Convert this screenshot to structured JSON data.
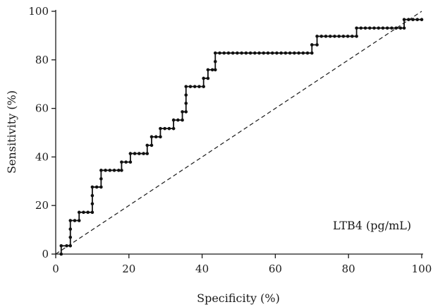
{
  "chart_data": {
    "type": "line",
    "xlabel": "Specificity (%)",
    "ylabel": "Sensitivity (%)",
    "xlim": [
      0,
      100
    ],
    "ylim": [
      0,
      100
    ],
    "x_ticks": [
      "0",
      "20",
      "40",
      "60",
      "80",
      "100"
    ],
    "y_ticks": [
      "0",
      "20",
      "40",
      "60",
      "80",
      "100"
    ],
    "annotation": "LTB4 (pg/mL)",
    "grid": false,
    "reference_line": {
      "x": [
        0,
        100
      ],
      "y": [
        0,
        100
      ],
      "style": "dashed"
    },
    "series": [
      {
        "marker": "dot",
        "step": true,
        "points": [
          [
            1.5,
            0
          ],
          [
            1.5,
            3.4
          ],
          [
            3.0,
            3.4
          ],
          [
            4.0,
            3.4
          ],
          [
            4.0,
            6.9
          ],
          [
            4.0,
            10.3
          ],
          [
            4.0,
            13.8
          ],
          [
            5.2,
            13.8
          ],
          [
            6.4,
            13.8
          ],
          [
            6.4,
            17.2
          ],
          [
            7.6,
            17.2
          ],
          [
            8.8,
            17.2
          ],
          [
            10.0,
            17.2
          ],
          [
            10.0,
            20.7
          ],
          [
            10.0,
            24.1
          ],
          [
            10.0,
            27.6
          ],
          [
            11.2,
            27.6
          ],
          [
            12.4,
            27.6
          ],
          [
            12.4,
            31.0
          ],
          [
            12.4,
            34.5
          ],
          [
            13.6,
            34.5
          ],
          [
            14.8,
            34.5
          ],
          [
            16.0,
            34.5
          ],
          [
            17.2,
            34.5
          ],
          [
            18.0,
            34.5
          ],
          [
            18.0,
            37.9
          ],
          [
            19.2,
            37.9
          ],
          [
            20.4,
            37.9
          ],
          [
            20.4,
            41.4
          ],
          [
            21.6,
            41.4
          ],
          [
            22.8,
            41.4
          ],
          [
            24.0,
            41.4
          ],
          [
            25.0,
            41.4
          ],
          [
            25.0,
            44.8
          ],
          [
            26.2,
            44.8
          ],
          [
            26.2,
            48.3
          ],
          [
            27.4,
            48.3
          ],
          [
            28.6,
            48.3
          ],
          [
            28.6,
            51.7
          ],
          [
            29.8,
            51.7
          ],
          [
            31.0,
            51.7
          ],
          [
            32.2,
            51.7
          ],
          [
            32.2,
            55.2
          ],
          [
            33.4,
            55.2
          ],
          [
            34.6,
            55.2
          ],
          [
            34.6,
            58.6
          ],
          [
            35.6,
            58.6
          ],
          [
            35.6,
            62.1
          ],
          [
            35.6,
            65.5
          ],
          [
            35.6,
            69.0
          ],
          [
            36.8,
            69.0
          ],
          [
            38.0,
            69.0
          ],
          [
            39.2,
            69.0
          ],
          [
            40.4,
            69.0
          ],
          [
            40.4,
            72.4
          ],
          [
            41.6,
            72.4
          ],
          [
            41.6,
            75.9
          ],
          [
            42.8,
            75.9
          ],
          [
            43.6,
            75.9
          ],
          [
            43.6,
            79.3
          ],
          [
            43.6,
            82.8
          ],
          [
            44.8,
            82.8
          ],
          [
            46.0,
            82.8
          ],
          [
            47.2,
            82.8
          ],
          [
            48.4,
            82.8
          ],
          [
            49.6,
            82.8
          ],
          [
            50.8,
            82.8
          ],
          [
            52.0,
            82.8
          ],
          [
            53.2,
            82.8
          ],
          [
            54.4,
            82.8
          ],
          [
            55.6,
            82.8
          ],
          [
            56.8,
            82.8
          ],
          [
            58.0,
            82.8
          ],
          [
            59.2,
            82.8
          ],
          [
            60.4,
            82.8
          ],
          [
            61.6,
            82.8
          ],
          [
            62.8,
            82.8
          ],
          [
            64.0,
            82.8
          ],
          [
            65.2,
            82.8
          ],
          [
            66.4,
            82.8
          ],
          [
            67.6,
            82.8
          ],
          [
            68.8,
            82.8
          ],
          [
            70.0,
            82.8
          ],
          [
            70.0,
            86.2
          ],
          [
            71.4,
            86.2
          ],
          [
            71.4,
            89.7
          ],
          [
            72.6,
            89.7
          ],
          [
            73.8,
            89.7
          ],
          [
            75.0,
            89.7
          ],
          [
            76.2,
            89.7
          ],
          [
            77.4,
            89.7
          ],
          [
            78.6,
            89.7
          ],
          [
            79.8,
            89.7
          ],
          [
            81.0,
            89.7
          ],
          [
            82.2,
            89.7
          ],
          [
            82.2,
            93.1
          ],
          [
            83.4,
            93.1
          ],
          [
            84.6,
            93.1
          ],
          [
            85.8,
            93.1
          ],
          [
            87.0,
            93.1
          ],
          [
            88.2,
            93.1
          ],
          [
            89.4,
            93.1
          ],
          [
            90.6,
            93.1
          ],
          [
            91.8,
            93.1
          ],
          [
            93.0,
            93.1
          ],
          [
            94.2,
            93.1
          ],
          [
            95.2,
            93.1
          ],
          [
            95.2,
            96.6
          ],
          [
            96.4,
            96.6
          ],
          [
            97.6,
            96.6
          ],
          [
            98.8,
            96.6
          ],
          [
            100.0,
            96.6
          ]
        ]
      }
    ]
  }
}
